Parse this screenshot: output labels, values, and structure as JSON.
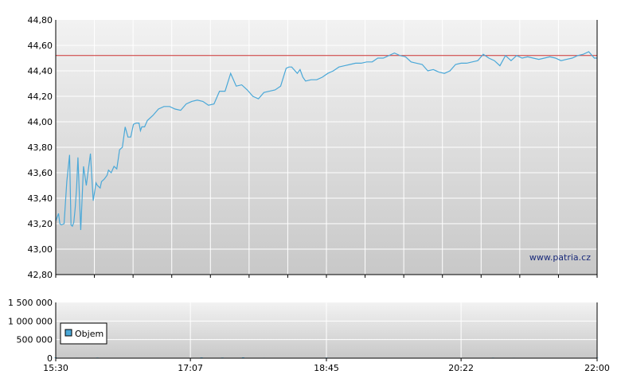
{
  "chart_data": [
    {
      "type": "line",
      "title": "",
      "xlabel": "",
      "ylabel": "",
      "ylim": [
        42.8,
        44.8
      ],
      "y_ticks": [
        "44,80",
        "44,60",
        "44,40",
        "44,20",
        "44,00",
        "43,80",
        "43,60",
        "43,40",
        "43,20",
        "43,00",
        "42,80"
      ],
      "y_tick_values": [
        44.8,
        44.6,
        44.4,
        44.2,
        44.0,
        43.8,
        43.6,
        43.4,
        43.2,
        43.0,
        42.8
      ],
      "xlim": [
        "15:30",
        "22:00"
      ],
      "reference_line": {
        "value": 44.52,
        "color": "#cc3333"
      },
      "grid": true,
      "watermark": "www.patria.cz",
      "series": [
        {
          "color": "#4aa8d8",
          "x": [
            "15:30",
            "15:32",
            "15:33",
            "15:34",
            "15:36",
            "15:38",
            "15:40",
            "15:41",
            "15:42",
            "15:43",
            "15:44",
            "15:45",
            "15:46",
            "15:48",
            "15:50",
            "15:52",
            "15:55",
            "15:57",
            "15:59",
            "16:00",
            "16:02",
            "16:03",
            "16:05",
            "16:07",
            "16:08",
            "16:10",
            "16:12",
            "16:14",
            "16:16",
            "16:18",
            "16:20",
            "16:22",
            "16:24",
            "16:26",
            "16:28",
            "16:30",
            "16:31",
            "16:32",
            "16:34",
            "16:36",
            "16:40",
            "16:44",
            "16:48",
            "16:52",
            "16:56",
            "17:00",
            "17:04",
            "17:08",
            "17:12",
            "17:16",
            "17:20",
            "17:24",
            "17:28",
            "17:32",
            "17:36",
            "17:40",
            "17:44",
            "17:48",
            "17:52",
            "17:56",
            "18:00",
            "18:04",
            "18:08",
            "18:12",
            "18:16",
            "18:18",
            "18:20",
            "18:24",
            "18:26",
            "18:28",
            "18:30",
            "18:34",
            "18:38",
            "18:42",
            "18:46",
            "18:50",
            "18:54",
            "18:58",
            "19:02",
            "19:06",
            "19:10",
            "19:14",
            "19:18",
            "19:22",
            "19:26",
            "19:30",
            "19:34",
            "19:38",
            "19:42",
            "19:46",
            "19:50",
            "19:54",
            "19:58",
            "20:02",
            "20:06",
            "20:10",
            "20:14",
            "20:18",
            "20:22",
            "20:26",
            "20:30",
            "20:34",
            "20:38",
            "20:42",
            "20:46",
            "20:50",
            "20:54",
            "20:58",
            "21:02",
            "21:06",
            "21:10",
            "21:14",
            "21:18",
            "21:22",
            "21:26",
            "21:30",
            "21:34",
            "21:38",
            "21:42",
            "21:46",
            "21:50",
            "21:54",
            "21:58",
            "22:00"
          ],
          "values": [
            43.22,
            43.28,
            43.2,
            43.19,
            43.2,
            43.53,
            43.74,
            43.19,
            43.18,
            43.21,
            43.32,
            43.48,
            43.72,
            43.15,
            43.65,
            43.5,
            43.75,
            43.38,
            43.52,
            43.5,
            43.48,
            43.53,
            43.55,
            43.58,
            43.62,
            43.6,
            43.65,
            43.63,
            43.78,
            43.8,
            43.96,
            43.88,
            43.88,
            43.98,
            43.99,
            43.99,
            43.93,
            43.96,
            43.96,
            44.01,
            44.05,
            44.1,
            44.12,
            44.12,
            44.1,
            44.09,
            44.14,
            44.16,
            44.17,
            44.16,
            44.13,
            44.14,
            44.24,
            44.24,
            44.38,
            44.28,
            44.29,
            44.25,
            44.2,
            44.18,
            44.23,
            44.24,
            44.25,
            44.28,
            44.42,
            44.43,
            44.43,
            44.38,
            44.41,
            44.35,
            44.32,
            44.33,
            44.33,
            44.35,
            44.38,
            44.4,
            44.43,
            44.44,
            44.45,
            44.46,
            44.46,
            44.47,
            44.47,
            44.5,
            44.5,
            44.52,
            44.54,
            44.52,
            44.51,
            44.47,
            44.46,
            44.45,
            44.4,
            44.41,
            44.39,
            44.38,
            44.4,
            44.45,
            44.46,
            44.46,
            44.47,
            44.48,
            44.53,
            44.5,
            44.48,
            44.44,
            44.52,
            44.48,
            44.52,
            44.5,
            44.51,
            44.5,
            44.49,
            44.5,
            44.51,
            44.5,
            44.48,
            44.49,
            44.5,
            44.52,
            44.53,
            44.55,
            44.5,
            44.5
          ]
        }
      ]
    },
    {
      "type": "bar",
      "title": "",
      "xlabel": "",
      "ylabel": "",
      "ylim": [
        0,
        1500000
      ],
      "y_ticks": [
        "1 500 000",
        "1 000 000",
        "500 000",
        "0"
      ],
      "y_tick_values": [
        1500000,
        1000000,
        500000,
        0
      ],
      "x_ticks": [
        "15:30",
        "17:07",
        "18:45",
        "20:22",
        "22:00"
      ],
      "grid": true,
      "legend": {
        "position": "left",
        "labels": [
          "Objem"
        ]
      },
      "series": [
        {
          "name": "Objem",
          "color": "#4aa8d8",
          "x": [
            "15:30",
            "15:45",
            "16:00",
            "16:15",
            "16:30",
            "16:45",
            "17:00",
            "17:15",
            "17:30",
            "17:45",
            "18:00",
            "18:15",
            "18:30",
            "18:45",
            "19:00",
            "19:15",
            "19:30",
            "19:45",
            "20:00",
            "20:15",
            "20:30",
            "20:45",
            "21:00",
            "21:15",
            "21:30",
            "21:45",
            "22:00"
          ],
          "values": [
            18000,
            12000,
            15000,
            10000,
            8000,
            6000,
            9000,
            20000,
            16000,
            22000,
            12000,
            9000,
            7000,
            15000,
            11000,
            8000,
            6000,
            7000,
            9000,
            8000,
            5000,
            14000,
            12000,
            8000,
            6000,
            7000,
            10000
          ]
        }
      ]
    }
  ]
}
